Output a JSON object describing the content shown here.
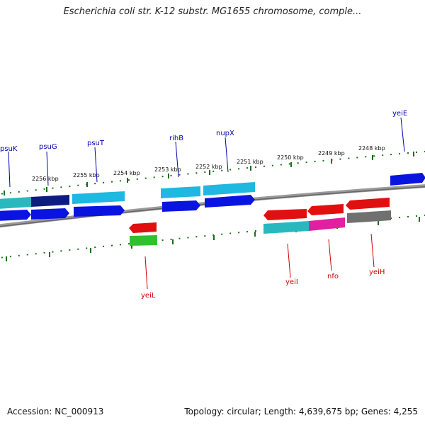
{
  "title": "Escherichia coli str. K-12 substr. MG1655 chromosome, comple...",
  "accession": "Accession: NC_000913",
  "summary": "Topology: circular; Length: 4,639,675 bp; Genes: 4,255",
  "ticks": [
    {
      "label": "2256 kbp"
    },
    {
      "label": "2255 kbp"
    },
    {
      "label": "2254 kbp"
    },
    {
      "label": "2253 kbp"
    },
    {
      "label": "2252 kbp"
    },
    {
      "label": "2251 kbp"
    },
    {
      "label": "2250 kbp"
    },
    {
      "label": "2249 kbp"
    },
    {
      "label": "2248 kbp"
    }
  ],
  "top_labels": [
    {
      "name": "psuK",
      "color": "#0000aa"
    },
    {
      "name": "psuG",
      "color": "#0000aa"
    },
    {
      "name": "psuT",
      "color": "#0000aa"
    },
    {
      "name": "rihB",
      "color": "#0000aa"
    },
    {
      "name": "nupX",
      "color": "#0000aa"
    },
    {
      "name": "yeiE",
      "color": "#0000aa"
    }
  ],
  "bottom_labels": [
    {
      "name": "yeiL",
      "color": "#cc0000"
    },
    {
      "name": "yeiI",
      "color": "#cc0000"
    },
    {
      "name": "nfo",
      "color": "#cc0000"
    },
    {
      "name": "yeiH",
      "color": "#cc0000"
    }
  ],
  "colors": {
    "forward_gene": "#0a14e0",
    "reverse_gene": "#e01010",
    "cyan": "#1fb8e0",
    "teal": "#2ab8bf",
    "navy": "#0d1c80",
    "magenta": "#e020a0",
    "gray": "#707070",
    "green": "#30c030",
    "tick": "#1a6e1a",
    "backbone": "#808080"
  }
}
